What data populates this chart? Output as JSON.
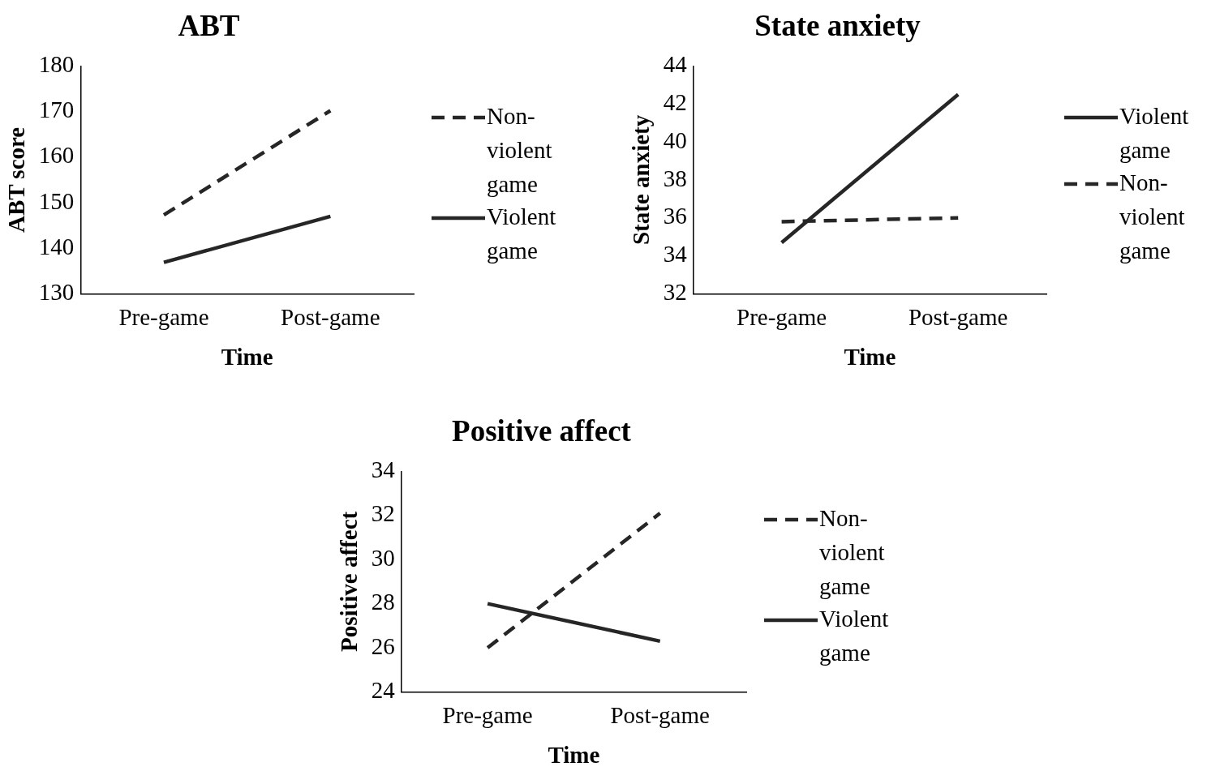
{
  "chart_data": [
    {
      "type": "line",
      "title": "ABT",
      "xlabel": "Time",
      "ylabel": "ABT score",
      "categories": [
        "Pre-game",
        "Post-game"
      ],
      "ylim": [
        130,
        180
      ],
      "yticks": [
        130,
        140,
        150,
        160,
        170,
        180
      ],
      "grid": false,
      "legend": "right",
      "marker": "none",
      "series": [
        {
          "name": "Non-violent game",
          "color": "#262626",
          "line_style": "dashed",
          "values": [
            147.3,
            170.2
          ]
        },
        {
          "name": "Violent game",
          "color": "#262626",
          "line_style": "solid",
          "values": [
            136.9,
            147
          ]
        }
      ]
    },
    {
      "type": "line",
      "title": "State anxiety",
      "xlabel": "Time",
      "ylabel": "State anxiety",
      "categories": [
        "Pre-game",
        "Post-game"
      ],
      "ylim": [
        32,
        44
      ],
      "yticks": [
        32,
        34,
        36,
        38,
        40,
        42,
        44
      ],
      "grid": false,
      "legend": "right",
      "marker": "none",
      "series": [
        {
          "name": "Violent game",
          "color": "#262626",
          "line_style": "solid",
          "values": [
            34.7,
            42.5
          ]
        },
        {
          "name": "Non-violent game",
          "color": "#262626",
          "line_style": "dashed",
          "values": [
            35.8,
            36.0
          ]
        }
      ]
    },
    {
      "type": "line",
      "title": "Positive affect",
      "xlabel": "Time",
      "ylabel": "Positive affect",
      "categories": [
        "Pre-game",
        "Post-game"
      ],
      "ylim": [
        24,
        34
      ],
      "yticks": [
        24,
        26,
        28,
        30,
        32,
        34
      ],
      "grid": false,
      "legend": "right",
      "marker": "none",
      "series": [
        {
          "name": "Non-violent game",
          "color": "#262626",
          "line_style": "dashed",
          "values": [
            26.0,
            32.1
          ]
        },
        {
          "name": "Violent game",
          "color": "#262626",
          "line_style": "solid",
          "values": [
            28.0,
            26.3
          ]
        }
      ]
    }
  ]
}
